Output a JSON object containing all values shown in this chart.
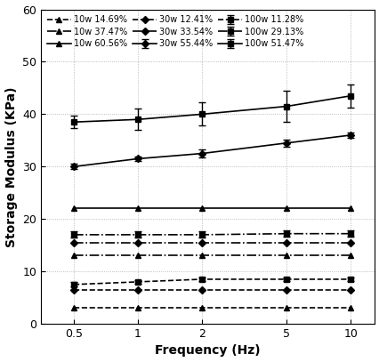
{
  "x": [
    0.5,
    1,
    2,
    5,
    10
  ],
  "series": [
    {
      "label": "10w 14.69%",
      "y": [
        3.0,
        3.0,
        3.0,
        3.0,
        3.0
      ],
      "yerr": [
        0.0,
        0.0,
        0.0,
        0.0,
        0.0
      ],
      "marker": "^",
      "linestyle": "--",
      "color": "#000000",
      "markersize": 5
    },
    {
      "label": "10w 37.47%",
      "y": [
        13.0,
        13.0,
        13.0,
        13.0,
        13.0
      ],
      "yerr": [
        0.0,
        0.0,
        0.0,
        0.0,
        0.0
      ],
      "marker": "^",
      "linestyle": "-.",
      "color": "#000000",
      "markersize": 5
    },
    {
      "label": "10w 60.56%",
      "y": [
        22.0,
        22.0,
        22.0,
        22.0,
        22.0
      ],
      "yerr": [
        0.0,
        0.0,
        0.0,
        0.0,
        0.0
      ],
      "marker": "^",
      "linestyle": "-",
      "color": "#000000",
      "markersize": 5
    },
    {
      "label": "30w 12.41%",
      "y": [
        6.5,
        6.5,
        6.5,
        6.5,
        6.5
      ],
      "yerr": [
        0.0,
        0.0,
        0.0,
        0.0,
        0.0
      ],
      "marker": "D",
      "linestyle": "--",
      "color": "#000000",
      "markersize": 4
    },
    {
      "label": "30w 33.54%",
      "y": [
        15.5,
        15.5,
        15.5,
        15.5,
        15.5
      ],
      "yerr": [
        0.0,
        0.0,
        0.0,
        0.0,
        0.0
      ],
      "marker": "D",
      "linestyle": "-.",
      "color": "#000000",
      "markersize": 4
    },
    {
      "label": "30w 55.44%",
      "y": [
        30.0,
        31.5,
        32.5,
        34.5,
        36.0
      ],
      "yerr": [
        0.5,
        0.5,
        0.7,
        0.7,
        0.5
      ],
      "marker": "D",
      "linestyle": "-",
      "color": "#000000",
      "markersize": 4
    },
    {
      "label": "100w 11.28%",
      "y": [
        7.5,
        8.0,
        8.5,
        8.5,
        8.5
      ],
      "yerr": [
        0.4,
        0.4,
        0.4,
        0.4,
        0.4
      ],
      "marker": "s",
      "linestyle": "--",
      "color": "#000000",
      "markersize": 5
    },
    {
      "label": "100w 29.13%",
      "y": [
        17.0,
        17.0,
        17.0,
        17.2,
        17.2
      ],
      "yerr": [
        0.6,
        0.6,
        0.6,
        0.6,
        0.6
      ],
      "marker": "s",
      "linestyle": "-.",
      "color": "#000000",
      "markersize": 5
    },
    {
      "label": "100w 51.47%",
      "y": [
        38.5,
        39.0,
        40.0,
        41.5,
        43.5
      ],
      "yerr": [
        1.2,
        2.0,
        2.2,
        3.0,
        2.2
      ],
      "marker": "s",
      "linestyle": "-",
      "color": "#000000",
      "markersize": 5
    }
  ],
  "xlabel": "Frequency (Hz)",
  "ylabel": "Storage Modulus (KPa)",
  "xlim": [
    0.35,
    13
  ],
  "ylim": [
    0,
    60
  ],
  "yticks": [
    0,
    10,
    20,
    30,
    40,
    50,
    60
  ],
  "xticks": [
    0.5,
    1,
    2,
    5,
    10
  ],
  "xtick_labels": [
    "0.5",
    "1",
    "2",
    "5",
    "10"
  ],
  "legend_cols": 3,
  "figsize": [
    4.27,
    4.07
  ],
  "dpi": 100
}
